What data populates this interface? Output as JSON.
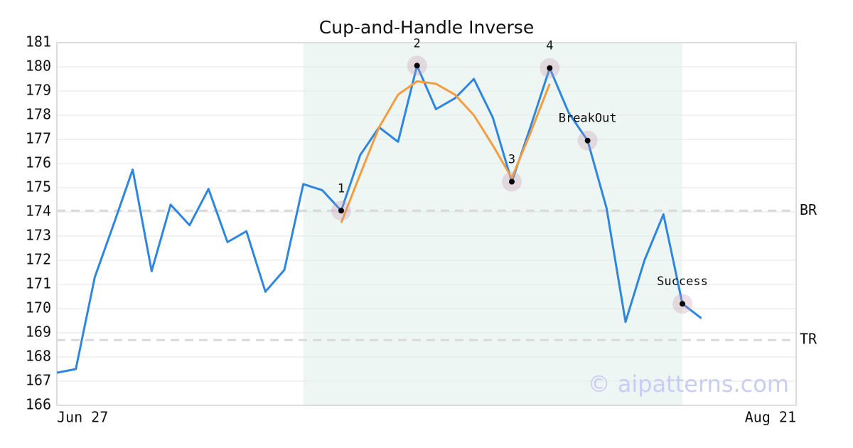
{
  "chart_data": {
    "type": "line",
    "title": "Cup-and-Handle Inverse",
    "xlim": [
      0,
      39
    ],
    "xticks": [
      {
        "value": 0,
        "label": "Jun 27"
      },
      {
        "value": 39,
        "label": "Aug 21"
      }
    ],
    "ylim": [
      166,
      181
    ],
    "yticks": [
      166,
      167,
      168,
      169,
      170,
      171,
      172,
      173,
      174,
      175,
      176,
      177,
      178,
      179,
      180,
      181
    ],
    "grid": true,
    "shade": [
      13,
      33
    ],
    "series": [
      {
        "color": "#2e86de",
        "x": [
          0,
          1,
          2,
          3,
          4,
          5,
          6,
          7,
          8,
          9,
          10,
          11,
          12,
          13,
          14,
          15,
          16,
          17,
          18,
          19,
          20,
          21,
          22,
          23,
          24,
          25,
          26,
          27,
          28,
          29,
          30,
          31,
          32,
          33,
          34
        ],
        "values": [
          167.35,
          167.5,
          171.3,
          173.5,
          175.75,
          171.55,
          174.3,
          173.45,
          174.95,
          172.75,
          173.2,
          170.7,
          171.6,
          175.15,
          174.9,
          174.05,
          176.35,
          177.5,
          176.9,
          180.05,
          178.25,
          178.7,
          179.5,
          177.9,
          175.25,
          177.55,
          179.95,
          178.1,
          176.95,
          174.15,
          169.45,
          172,
          173.9,
          170.2,
          169.6
        ]
      },
      {
        "color": "#f39c40",
        "x": [
          15,
          16,
          17,
          18,
          19,
          20,
          21,
          22,
          23,
          24,
          25,
          26
        ],
        "values": [
          173.55,
          175.55,
          177.5,
          178.85,
          179.4,
          179.3,
          178.85,
          178,
          176.75,
          175.4,
          177.3,
          179.3
        ]
      }
    ],
    "points": [
      {
        "label": "1",
        "x": 15,
        "y": 174.05
      },
      {
        "label": "2",
        "x": 19,
        "y": 180.05
      },
      {
        "label": "3",
        "x": 24,
        "y": 175.25
      },
      {
        "label": "4",
        "x": 26,
        "y": 179.95
      },
      {
        "label": "BreakOut",
        "x": 28,
        "y": 176.95
      },
      {
        "label": "Success",
        "x": 33,
        "y": 170.2
      }
    ],
    "levels": [
      {
        "label": "BR",
        "value": 174.05
      },
      {
        "label": "TR",
        "value": 168.7
      }
    ],
    "watermark": "© aipatterns.com"
  }
}
